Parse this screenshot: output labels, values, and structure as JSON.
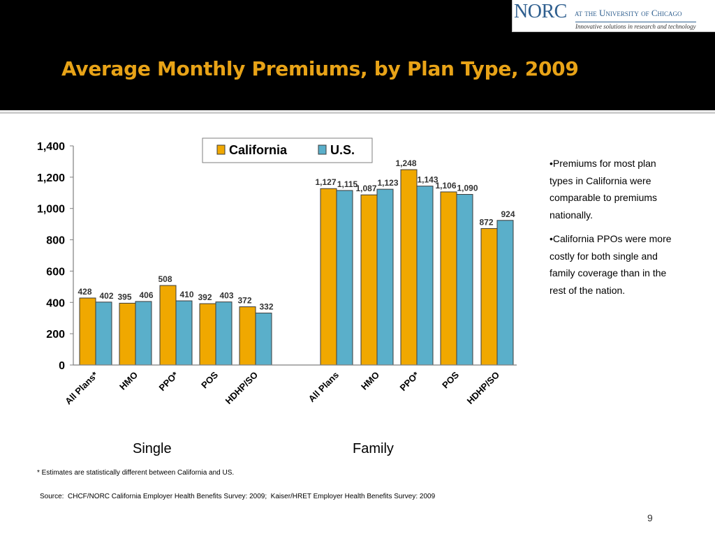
{
  "slide": {
    "title": "Average Monthly Premiums, by Plan Type, 2009",
    "page_number": "9"
  },
  "logo": {
    "name": "NORC",
    "affiliation": "at the University of Chicago",
    "tagline": "Innovative solutions in research and technology"
  },
  "chart_data": {
    "type": "bar",
    "groups": [
      "Single",
      "Family"
    ],
    "categories": [
      "All Plans*",
      "HMO",
      "PPO*",
      "POS",
      "HDHP/SO",
      "All Plans",
      "HMO",
      "PPO*",
      "POS",
      "HDHP/SO"
    ],
    "series": [
      {
        "name": "California",
        "color": "#f0a800",
        "values": [
          428,
          395,
          508,
          392,
          372,
          1127,
          1087,
          1248,
          1106,
          872
        ],
        "labels": [
          "428",
          "395",
          "508",
          "392",
          "372",
          "1,127",
          "1,087",
          "1,248",
          "1,106",
          "872"
        ]
      },
      {
        "name": "U.S.",
        "color": "#5aafca",
        "values": [
          402,
          406,
          410,
          403,
          332,
          1115,
          1123,
          1143,
          1090,
          924
        ],
        "labels": [
          "402",
          "406",
          "410",
          "403",
          "332",
          "1,115",
          "1,123",
          "1,143",
          "1,090",
          "924"
        ]
      }
    ],
    "ylim": [
      0,
      1400
    ],
    "yticks": [
      0,
      200,
      400,
      600,
      800,
      1000,
      1200,
      1400
    ],
    "ytick_labels": [
      "0",
      "200",
      "400",
      "600",
      "800",
      "1,000",
      "1,200",
      "1,400"
    ],
    "legend_position": "top-center",
    "grid": false
  },
  "notes": [
    "•Premiums for most plan types in California were comparable to premiums nationally.",
    "•California PPOs were more costly for both single and family coverage than in the rest of the nation."
  ],
  "footnote": "* Estimates are statistically different between California and US.",
  "source": "Source:  CHCF/NORC California Employer Health Benefits Survey: 2009;  Kaiser/HRET Employer Health Benefits Survey: 2009"
}
